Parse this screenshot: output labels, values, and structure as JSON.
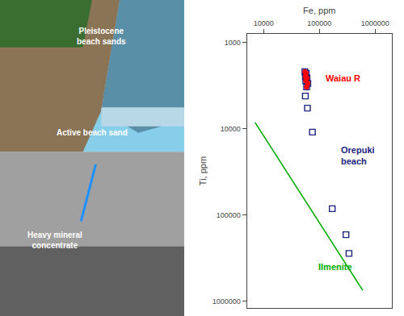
{
  "chart_data": {
    "type": "scatter",
    "xlabel": "Fe, ppm",
    "ylabel": "Ti, ppm",
    "log": true,
    "grid": false,
    "xlim": [
      5000,
      2000000
    ],
    "ylim": [
      1200000,
      800
    ],
    "xticks": [
      10000,
      100000,
      1000000
    ],
    "yticks": [
      1000,
      10000,
      100000,
      1000000
    ],
    "series": [
      {
        "type": "line",
        "color": "#00aa00",
        "x": [
          7000,
          600000
        ],
        "values": [
          8500,
          750000
        ]
      },
      {
        "type": "scatter",
        "marker": "square-open",
        "color": "#1a237e",
        "x": [
          75000,
          170000,
          300000,
          340000
        ],
        "values": [
          11000,
          85000,
          170000,
          280000
        ]
      },
      {
        "type": "scatter",
        "marker": "square-open",
        "color": "#1a237e",
        "x": [
          55000,
          58000,
          56000,
          60000,
          57000,
          62000,
          59000,
          56000,
          61000
        ],
        "values": [
          2200,
          2300,
          2500,
          2600,
          2800,
          3000,
          3300,
          4200,
          5800
        ]
      },
      {
        "type": "scatter",
        "marker": "circle",
        "color": "red",
        "x": [
          55000,
          58000,
          56000,
          60000,
          57000,
          62000,
          59000
        ],
        "values": [
          2200,
          2300,
          2500,
          2600,
          2800,
          3000,
          3300
        ]
      }
    ],
    "annotations": [
      {
        "text": "Waiau R",
        "x": 120000,
        "y": 2600,
        "color": "red"
      },
      {
        "text": "Orepuki\nbeach",
        "x": 230000,
        "y": 15000,
        "color": "#1a237e"
      },
      {
        "text": "Ilmenite",
        "x": 90000,
        "y": 400000,
        "color": "#00aa00"
      },
      {
        "text": "Pleistocene\nbeach sands",
        "color": "white"
      },
      {
        "text": "Active beach sand",
        "color": "white"
      },
      {
        "text": "Heavy mineral\nconcentrate",
        "color": "white"
      }
    ]
  }
}
